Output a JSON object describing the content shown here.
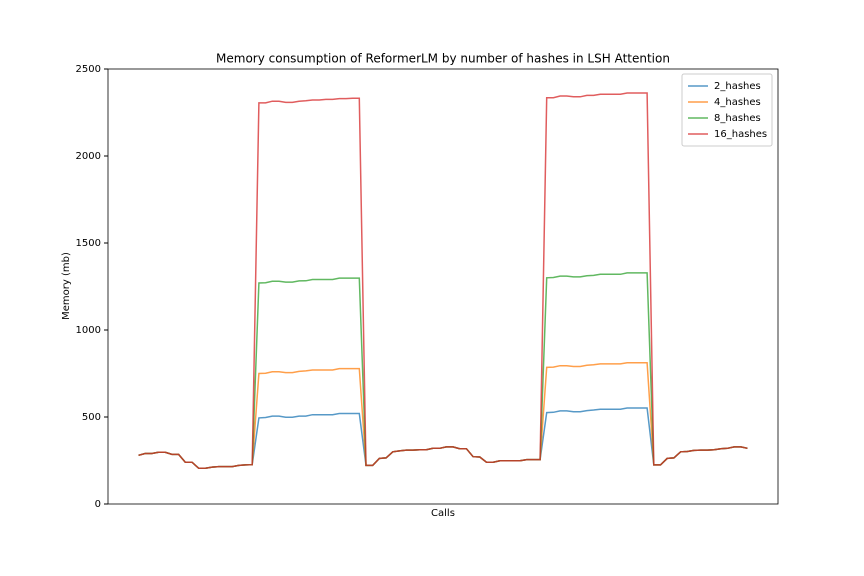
{
  "chart_data": {
    "type": "line",
    "title": "Memory consumption of ReformerLM by number of hashes in LSH Attention",
    "x_label": "Calls",
    "y_label": "Memory (mb)",
    "ylim": [
      0,
      2500
    ],
    "yticks": [
      0,
      500,
      1000,
      1500,
      2000,
      2500
    ],
    "legend": "upper right",
    "series": [
      {
        "name": "2_hashes",
        "color": "#1f77b4",
        "values": [
          280,
          290,
          290,
          297,
          297,
          285,
          285,
          240,
          240,
          205,
          205,
          212,
          215,
          215,
          215,
          222,
          225,
          226,
          495,
          497,
          505,
          505,
          498,
          498,
          505,
          505,
          513,
          513,
          513,
          513,
          520,
          520,
          520,
          520,
          222,
          222,
          262,
          265,
          300,
          305,
          310,
          310,
          312,
          312,
          320,
          320,
          328,
          328,
          318,
          318,
          272,
          270,
          240,
          240,
          248,
          248,
          248,
          248,
          255,
          255,
          255,
          525,
          527,
          535,
          535,
          530,
          530,
          537,
          540,
          545,
          545,
          545,
          545,
          552,
          552,
          552,
          552,
          225,
          225,
          262,
          265,
          300,
          302,
          308,
          310,
          310,
          312,
          318,
          320,
          328,
          328,
          320
        ]
      },
      {
        "name": "4_hashes",
        "color": "#ff7f0e",
        "values": [
          280,
          290,
          290,
          297,
          297,
          285,
          285,
          240,
          240,
          205,
          205,
          212,
          215,
          215,
          215,
          222,
          225,
          226,
          750,
          752,
          760,
          760,
          755,
          755,
          762,
          765,
          770,
          770,
          770,
          770,
          778,
          778,
          778,
          778,
          222,
          222,
          262,
          265,
          300,
          305,
          310,
          310,
          312,
          312,
          320,
          320,
          328,
          328,
          318,
          318,
          272,
          270,
          240,
          240,
          248,
          248,
          248,
          248,
          255,
          255,
          255,
          785,
          787,
          795,
          795,
          790,
          790,
          797,
          800,
          805,
          805,
          805,
          805,
          812,
          812,
          812,
          812,
          225,
          225,
          262,
          265,
          300,
          302,
          308,
          310,
          310,
          312,
          318,
          320,
          328,
          328,
          320
        ]
      },
      {
        "name": "8_hashes",
        "color": "#2ca02c",
        "values": [
          280,
          290,
          290,
          297,
          297,
          285,
          285,
          240,
          240,
          205,
          205,
          212,
          215,
          215,
          215,
          222,
          225,
          226,
          1270,
          1272,
          1280,
          1280,
          1275,
          1275,
          1282,
          1283,
          1290,
          1290,
          1290,
          1290,
          1298,
          1298,
          1298,
          1298,
          222,
          222,
          262,
          265,
          300,
          305,
          310,
          310,
          312,
          312,
          320,
          320,
          328,
          328,
          318,
          318,
          272,
          270,
          240,
          240,
          248,
          248,
          248,
          248,
          255,
          255,
          255,
          1300,
          1302,
          1310,
          1310,
          1305,
          1305,
          1312,
          1314,
          1320,
          1320,
          1320,
          1320,
          1328,
          1328,
          1328,
          1328,
          225,
          225,
          262,
          265,
          300,
          302,
          308,
          310,
          310,
          312,
          318,
          320,
          328,
          328,
          320
        ]
      },
      {
        "name": "16_hashes",
        "color": "#d62728",
        "values": [
          280,
          290,
          290,
          297,
          297,
          285,
          285,
          240,
          240,
          205,
          205,
          212,
          215,
          215,
          215,
          222,
          225,
          226,
          2305,
          2305,
          2315,
          2315,
          2308,
          2308,
          2315,
          2318,
          2322,
          2322,
          2325,
          2325,
          2330,
          2330,
          2332,
          2332,
          222,
          222,
          262,
          265,
          300,
          305,
          310,
          310,
          312,
          312,
          320,
          320,
          328,
          328,
          318,
          318,
          272,
          270,
          240,
          240,
          248,
          248,
          248,
          248,
          255,
          255,
          255,
          2335,
          2335,
          2345,
          2345,
          2340,
          2340,
          2348,
          2348,
          2355,
          2355,
          2355,
          2355,
          2362,
          2362,
          2362,
          2362,
          225,
          225,
          262,
          265,
          300,
          302,
          308,
          310,
          310,
          312,
          318,
          320,
          328,
          328,
          320
        ]
      }
    ]
  }
}
